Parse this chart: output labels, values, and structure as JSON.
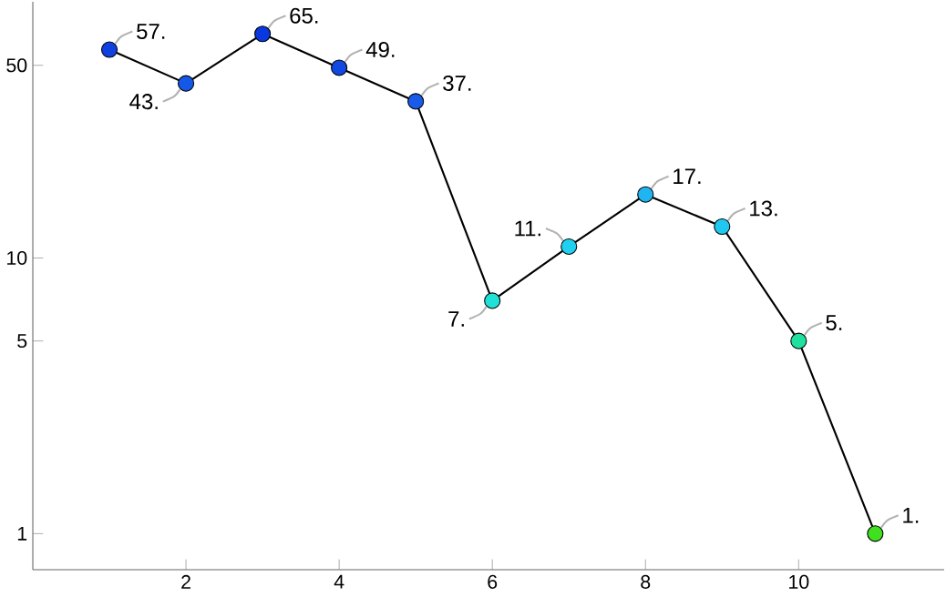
{
  "chart_data": {
    "type": "line",
    "x": [
      1,
      2,
      3,
      4,
      5,
      6,
      7,
      8,
      9,
      10,
      11
    ],
    "values": [
      57,
      43,
      65,
      49,
      37,
      7,
      11,
      17,
      13,
      5,
      1
    ],
    "value_labels": [
      "57.",
      "43.",
      "65.",
      "49.",
      "37.",
      "7.",
      "11.",
      "17.",
      "13.",
      "5.",
      "1."
    ],
    "color": "#000000",
    "colors": [
      "#1040e0",
      "#1558e8",
      "#0a38e0",
      "#1048e0",
      "#1a5ae8",
      "#20e0d8",
      "#20d0f0",
      "#20b4f0",
      "#20c8f0",
      "#20e0a0",
      "#40e020"
    ],
    "marker": "circle",
    "log": "y",
    "grid": false,
    "xlim": [
      0,
      11.9
    ],
    "ylim": [
      0.74,
      85
    ],
    "xticks": [
      2,
      4,
      6,
      8,
      10
    ],
    "yticks": [
      1,
      5,
      10,
      50
    ]
  }
}
